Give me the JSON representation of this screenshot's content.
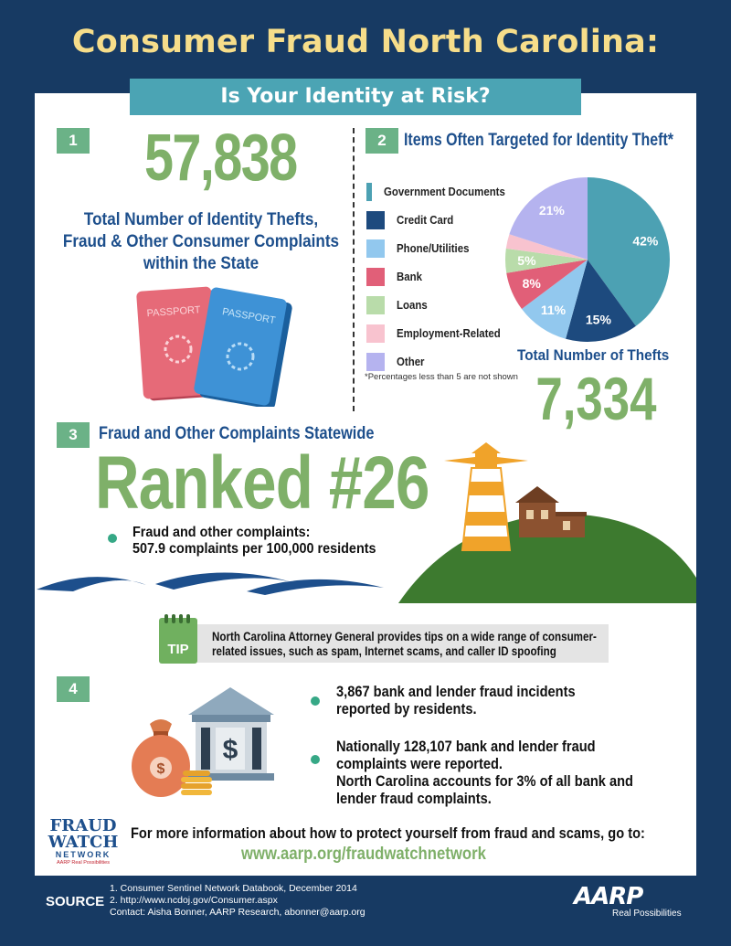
{
  "header": {
    "title": "Consumer Fraud North Carolina:",
    "subtitle": "Is Your Identity at Risk?"
  },
  "section1": {
    "number": "1",
    "big_number": "57,838",
    "caption_line1": "Total Number of Identity Thefts,",
    "caption_line2": "Fraud & Other Consumer Complaints",
    "caption_line3": "within the State",
    "passport_label_1": "PASSPORT",
    "passport_label_2": "PASSPORT"
  },
  "section2": {
    "number": "2",
    "heading": "Items Often Targeted for Identity Theft*",
    "legend": [
      {
        "label": "Government Documents",
        "color": "#4ca1b3"
      },
      {
        "label": "Credit Card",
        "color": "#1d4a7e"
      },
      {
        "label": "Phone/Utilities",
        "color": "#92c8ee"
      },
      {
        "label": "Bank",
        "color": "#e15f78"
      },
      {
        "label": "Loans",
        "color": "#b9dcaa"
      },
      {
        "label": "Employment-Related",
        "color": "#f8c3cf"
      },
      {
        "label": "Other",
        "color": "#b5b3ef"
      }
    ],
    "footnote": "*Percentages less than 5 are not shown",
    "total_label": "Total Number of Thefts",
    "total_value": "7,334"
  },
  "chart_data": {
    "type": "pie",
    "categories": [
      "Government Documents",
      "Credit Card",
      "Phone/Utilities",
      "Bank",
      "Loans",
      "Employment-Related",
      "Other"
    ],
    "values": [
      42,
      15,
      11,
      8,
      5,
      3,
      21
    ],
    "labels": [
      "42%",
      "15%",
      "11%",
      "8%",
      "5%",
      "",
      "21%"
    ],
    "colors": [
      "#4ca1b3",
      "#1d4a7e",
      "#92c8ee",
      "#e15f78",
      "#b9dcaa",
      "#f8c3cf",
      "#b5b3ef"
    ]
  },
  "section3": {
    "number": "3",
    "heading": "Fraud and Other Complaints Statewide",
    "rank": "Ranked #26",
    "bullet_line1": "Fraud and other complaints:",
    "bullet_line2": "507.9 complaints per 100,000 residents"
  },
  "tip": {
    "icon_label": "TIP",
    "text_line1": "North Carolina Attorney General provides tips on a wide range of consumer-",
    "text_line2": "related issues, such as spam, Internet scams, and caller ID spoofing"
  },
  "section4": {
    "number": "4",
    "bullet1_line1": "3,867 bank and lender fraud incidents",
    "bullet1_line2": "reported by residents.",
    "bullet2_line1": "Nationally 128,107 bank and lender fraud",
    "bullet2_line2": "complaints were reported.",
    "bullet2_line3": "North Carolina accounts for 3% of all bank and",
    "bullet2_line4": "lender fraud complaints.",
    "dollar_sign": "$"
  },
  "footer": {
    "logo_line1": "FRAUD",
    "logo_line2": "WATCH",
    "logo_line3": "NETWORK",
    "logo_small": "AARP Real Possibilities",
    "info_text": "For more information about how to protect yourself from fraud and scams, go to:",
    "url": "www.aarp.org/fraudwatchnetwork",
    "source_label": "SOURCE",
    "source1": "1. Consumer Sentinel Network Databook, December 2014",
    "source2": "2. http://www.ncdoj.gov/Consumer.aspx",
    "contact": "Contact: Aisha Bonner, AARP Research, abonner@aarp.org",
    "aarp_logo": "AARP",
    "aarp_tagline": "Real Possibilities"
  }
}
